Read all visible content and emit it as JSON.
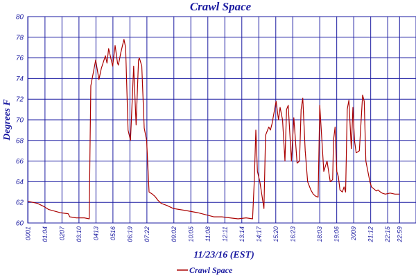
{
  "chart_data": {
    "type": "line",
    "title": "Crawl Space",
    "xlabel": "11/23/16 (EST)",
    "ylabel": "Degrees F",
    "ylim": [
      60,
      80
    ],
    "yticks": [
      60,
      62,
      64,
      66,
      68,
      70,
      72,
      74,
      76,
      78,
      80
    ],
    "xlim": [
      0,
      24
    ],
    "xtick_labels": [
      "0001",
      "01:04",
      "0207",
      "03:10",
      "0413",
      "0516",
      "06:19",
      "07:22",
      "09:02",
      "10:05",
      "11:08",
      "12:11",
      "13:14",
      "14:17",
      "15:20",
      "16:23",
      "18:03",
      "19:06",
      "2009",
      "21:12",
      "22:15",
      "22:59"
    ],
    "xtick_hours": [
      0.0167,
      1.0667,
      2.1167,
      3.1667,
      4.2167,
      5.2667,
      6.3167,
      7.3667,
      9.0333,
      10.0833,
      11.1333,
      12.1833,
      13.2333,
      14.2833,
      15.3333,
      16.3833,
      18.05,
      19.1,
      20.15,
      21.2,
      22.25,
      22.9833
    ],
    "grid": true,
    "legend_position": "bottom",
    "colors": {
      "line": "#aa0000",
      "grid": "#1a1aa0",
      "text": "#1a1aa0"
    },
    "series": [
      {
        "name": "Crawl Space",
        "x": [
          0.0167,
          0.6,
          1.0,
          1.3,
          2.0,
          2.5,
          2.6,
          3.0,
          3.5,
          3.8,
          3.85,
          3.9,
          4.2,
          4.4,
          4.55,
          4.8,
          4.9,
          5.0,
          5.25,
          5.4,
          5.55,
          5.6,
          5.75,
          5.95,
          6.05,
          6.2,
          6.35,
          6.55,
          6.7,
          6.85,
          6.9,
          7.05,
          7.2,
          7.35,
          7.5,
          7.7,
          7.85,
          8.05,
          8.25,
          8.6,
          9.0,
          9.8,
          10.5,
          11.0,
          11.5,
          12.0,
          12.5,
          13.0,
          13.5,
          13.9,
          14.0,
          14.1,
          14.2,
          14.35,
          14.6,
          14.7,
          14.9,
          15.0,
          15.1,
          15.35,
          15.5,
          15.6,
          15.75,
          15.9,
          16.0,
          16.1,
          16.3,
          16.45,
          16.65,
          16.8,
          16.9,
          17.0,
          17.15,
          17.3,
          17.5,
          17.65,
          17.8,
          17.95,
          18.05,
          18.3,
          18.5,
          18.7,
          18.85,
          18.9,
          19.0,
          19.1,
          19.2,
          19.3,
          19.45,
          19.55,
          19.65,
          19.75,
          19.85,
          20.0,
          20.1,
          20.2,
          20.3,
          20.5,
          20.7,
          20.8,
          20.9,
          21.0,
          21.15,
          21.25,
          21.4,
          21.55,
          21.65,
          21.8,
          21.9,
          22.1,
          22.4,
          22.7,
          22.98
        ],
        "y": [
          62.1,
          61.9,
          61.6,
          61.3,
          61.0,
          60.9,
          60.6,
          60.5,
          60.5,
          60.4,
          67.0,
          73.3,
          75.8,
          73.9,
          75.0,
          76.2,
          75.5,
          76.9,
          75.2,
          77.2,
          75.5,
          75.3,
          76.5,
          77.8,
          77.0,
          69.0,
          68.0,
          75.2,
          69.5,
          75.8,
          76.0,
          75.2,
          69.2,
          68.0,
          63.0,
          62.8,
          62.6,
          62.2,
          61.9,
          61.7,
          61.4,
          61.2,
          61.0,
          60.8,
          60.6,
          60.6,
          60.5,
          60.4,
          60.5,
          60.4,
          64.0,
          69.0,
          65.0,
          64.0,
          61.4,
          68.5,
          69.3,
          69.0,
          69.6,
          71.8,
          70.0,
          71.2,
          70.0,
          66.0,
          71.0,
          71.4,
          66.0,
          70.2,
          65.8,
          66.0,
          71.0,
          72.1,
          67.0,
          64.0,
          63.2,
          62.8,
          62.6,
          62.5,
          71.4,
          65.0,
          66.0,
          64.0,
          64.2,
          68.0,
          69.3,
          65.0,
          64.5,
          63.2,
          63.0,
          63.5,
          63.0,
          71.0,
          71.9,
          67.2,
          71.2,
          68.0,
          66.8,
          67.0,
          72.4,
          71.8,
          66.0,
          65.2,
          64.0,
          63.5,
          63.3,
          63.1,
          63.2,
          63.0,
          62.9,
          62.8,
          62.9,
          62.8,
          62.8
        ]
      }
    ]
  }
}
